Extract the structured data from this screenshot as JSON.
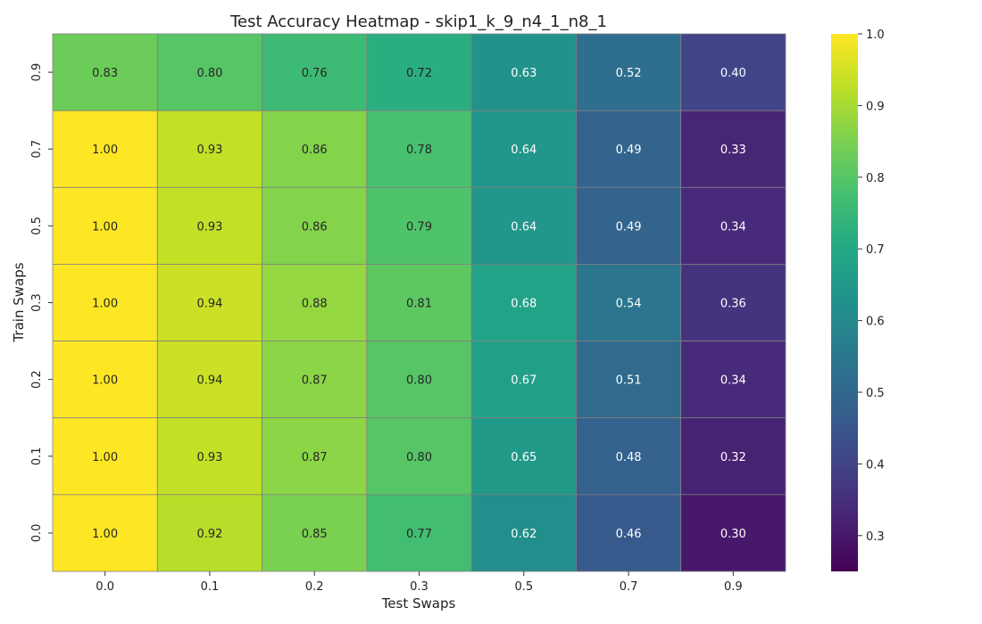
{
  "chart_data": {
    "type": "heatmap",
    "title": "Test Accuracy Heatmap - skip1_k_9_n4_1_n8_1",
    "xlabel": "Test Swaps",
    "ylabel": "Train Swaps",
    "x_categories": [
      "0.0",
      "0.1",
      "0.2",
      "0.3",
      "0.5",
      "0.7",
      "0.9"
    ],
    "y_categories": [
      "0.9",
      "0.7",
      "0.5",
      "0.3",
      "0.2",
      "0.1",
      "0.0"
    ],
    "values": [
      [
        0.83,
        0.8,
        0.76,
        0.72,
        0.63,
        0.52,
        0.4
      ],
      [
        1.0,
        0.93,
        0.86,
        0.78,
        0.64,
        0.49,
        0.33
      ],
      [
        1.0,
        0.93,
        0.86,
        0.79,
        0.64,
        0.49,
        0.34
      ],
      [
        1.0,
        0.94,
        0.88,
        0.81,
        0.68,
        0.54,
        0.36
      ],
      [
        1.0,
        0.94,
        0.87,
        0.8,
        0.67,
        0.51,
        0.34
      ],
      [
        1.0,
        0.93,
        0.87,
        0.8,
        0.65,
        0.48,
        0.32
      ],
      [
        1.0,
        0.92,
        0.85,
        0.77,
        0.62,
        0.46,
        0.3
      ]
    ],
    "colormap": "viridis",
    "color_range": [
      0.25,
      1.0
    ],
    "colorbar_ticks": [
      "0.3",
      "0.4",
      "0.5",
      "0.6",
      "0.7",
      "0.8",
      "0.9",
      "1.0"
    ],
    "colorbar_position": "right",
    "grid": false
  }
}
